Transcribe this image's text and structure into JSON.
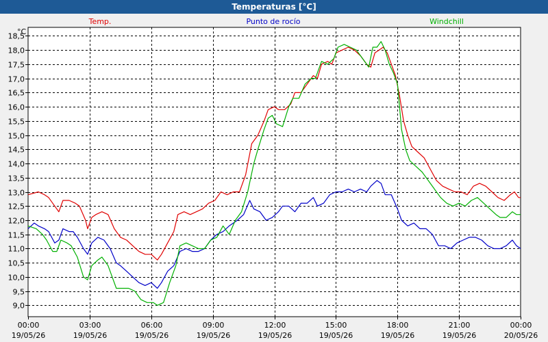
{
  "window": {
    "title": "Temperaturas [°C]"
  },
  "chart_data": {
    "type": "line",
    "title": "Temperaturas [°C]",
    "y_unit": "°C",
    "ylim": [
      8.6,
      18.8
    ],
    "yticks": [
      9.0,
      9.5,
      10.0,
      10.5,
      11.0,
      11.5,
      12.0,
      12.5,
      13.0,
      13.5,
      14.0,
      14.5,
      15.0,
      15.5,
      16.0,
      16.5,
      17.0,
      17.5,
      18.0,
      18.5
    ],
    "ytick_labels": [
      "9,0",
      "9,5",
      "10,0",
      "10,5",
      "11,0",
      "11,5",
      "12,0",
      "12,5",
      "13,0",
      "13,5",
      "14,0",
      "14,5",
      "15,0",
      "15,5",
      "16,0",
      "16,5",
      "17,0",
      "17,5",
      "18,0",
      "18,5"
    ],
    "xlim": [
      0,
      24
    ],
    "xticks": [
      0,
      3,
      6,
      9,
      12,
      15,
      18,
      21,
      24
    ],
    "xtick_labels": [
      [
        "00:00",
        "19/05/26"
      ],
      [
        "03:00",
        "19/05/26"
      ],
      [
        "06:00",
        "19/05/26"
      ],
      [
        "09:00",
        "19/05/26"
      ],
      [
        "12:00",
        "19/05/26"
      ],
      [
        "15:00",
        "19/05/26"
      ],
      [
        "18:00",
        "19/05/26"
      ],
      [
        "21:00",
        "19/05/26"
      ],
      [
        "00:00",
        "20/05/26"
      ]
    ],
    "grid": true,
    "legend_position": "top",
    "series": [
      {
        "name": "Temp.",
        "color": "#e00000",
        "points": [
          [
            0,
            12.9
          ],
          [
            0.5,
            13.0
          ],
          [
            0.8,
            12.9
          ],
          [
            1.0,
            12.8
          ],
          [
            1.3,
            12.5
          ],
          [
            1.5,
            12.3
          ],
          [
            1.7,
            12.7
          ],
          [
            2.0,
            12.7
          ],
          [
            2.3,
            12.6
          ],
          [
            2.5,
            12.5
          ],
          [
            2.8,
            12.0
          ],
          [
            2.9,
            11.7
          ],
          [
            3.1,
            12.1
          ],
          [
            3.3,
            12.2
          ],
          [
            3.6,
            12.3
          ],
          [
            3.9,
            12.2
          ],
          [
            4.2,
            11.7
          ],
          [
            4.5,
            11.4
          ],
          [
            4.8,
            11.3
          ],
          [
            5.1,
            11.1
          ],
          [
            5.4,
            10.9
          ],
          [
            5.7,
            10.8
          ],
          [
            6.0,
            10.8
          ],
          [
            6.3,
            10.6
          ],
          [
            6.5,
            10.8
          ],
          [
            6.8,
            11.2
          ],
          [
            7.1,
            11.6
          ],
          [
            7.3,
            12.2
          ],
          [
            7.6,
            12.3
          ],
          [
            7.9,
            12.2
          ],
          [
            8.2,
            12.3
          ],
          [
            8.5,
            12.4
          ],
          [
            8.8,
            12.6
          ],
          [
            9.1,
            12.7
          ],
          [
            9.4,
            13.0
          ],
          [
            9.7,
            12.9
          ],
          [
            10.0,
            13.0
          ],
          [
            10.3,
            13.0
          ],
          [
            10.6,
            13.6
          ],
          [
            10.9,
            14.7
          ],
          [
            11.2,
            15.0
          ],
          [
            11.5,
            15.5
          ],
          [
            11.7,
            15.9
          ],
          [
            12.0,
            16.0
          ],
          [
            12.2,
            15.9
          ],
          [
            12.5,
            15.9
          ],
          [
            12.8,
            16.1
          ],
          [
            13.0,
            16.5
          ],
          [
            13.3,
            16.5
          ],
          [
            13.6,
            16.8
          ],
          [
            13.9,
            17.1
          ],
          [
            14.1,
            17.0
          ],
          [
            14.3,
            17.5
          ],
          [
            14.6,
            17.6
          ],
          [
            14.8,
            17.5
          ],
          [
            15.0,
            17.9
          ],
          [
            15.3,
            18.0
          ],
          [
            15.6,
            18.1
          ],
          [
            15.9,
            18.0
          ],
          [
            16.2,
            17.8
          ],
          [
            16.5,
            17.5
          ],
          [
            16.7,
            17.4
          ],
          [
            16.9,
            17.9
          ],
          [
            17.1,
            18.0
          ],
          [
            17.3,
            18.1
          ],
          [
            17.5,
            17.9
          ],
          [
            17.7,
            17.5
          ],
          [
            17.9,
            17.1
          ],
          [
            18.1,
            16.4
          ],
          [
            18.3,
            15.5
          ],
          [
            18.5,
            15.0
          ],
          [
            18.7,
            14.6
          ],
          [
            19.0,
            14.4
          ],
          [
            19.3,
            14.2
          ],
          [
            19.6,
            13.8
          ],
          [
            19.9,
            13.4
          ],
          [
            20.2,
            13.2
          ],
          [
            20.5,
            13.1
          ],
          [
            20.8,
            13.0
          ],
          [
            21.1,
            13.0
          ],
          [
            21.4,
            12.9
          ],
          [
            21.7,
            13.2
          ],
          [
            22.0,
            13.3
          ],
          [
            22.3,
            13.2
          ],
          [
            22.6,
            13.0
          ],
          [
            22.9,
            12.8
          ],
          [
            23.2,
            12.7
          ],
          [
            23.5,
            12.9
          ],
          [
            23.7,
            13.0
          ],
          [
            23.9,
            12.8
          ],
          [
            24.0,
            12.8
          ]
        ]
      },
      {
        "name": "Punto de rocío",
        "color": "#0000c8",
        "points": [
          [
            0,
            11.7
          ],
          [
            0.3,
            11.9
          ],
          [
            0.5,
            11.8
          ],
          [
            0.8,
            11.7
          ],
          [
            1.0,
            11.6
          ],
          [
            1.3,
            11.2
          ],
          [
            1.5,
            11.3
          ],
          [
            1.7,
            11.7
          ],
          [
            2.0,
            11.6
          ],
          [
            2.2,
            11.6
          ],
          [
            2.4,
            11.4
          ],
          [
            2.7,
            11.0
          ],
          [
            2.9,
            10.8
          ],
          [
            3.1,
            11.2
          ],
          [
            3.4,
            11.4
          ],
          [
            3.7,
            11.3
          ],
          [
            4.0,
            11.0
          ],
          [
            4.3,
            10.5
          ],
          [
            4.5,
            10.4
          ],
          [
            4.8,
            10.2
          ],
          [
            5.1,
            10.0
          ],
          [
            5.4,
            9.8
          ],
          [
            5.7,
            9.7
          ],
          [
            6.0,
            9.8
          ],
          [
            6.3,
            9.6
          ],
          [
            6.5,
            9.8
          ],
          [
            6.8,
            10.2
          ],
          [
            7.1,
            10.4
          ],
          [
            7.4,
            10.9
          ],
          [
            7.7,
            11.0
          ],
          [
            8.0,
            10.9
          ],
          [
            8.3,
            10.9
          ],
          [
            8.6,
            11.0
          ],
          [
            8.9,
            11.3
          ],
          [
            9.2,
            11.5
          ],
          [
            9.5,
            11.6
          ],
          [
            9.8,
            11.8
          ],
          [
            10.2,
            12.0
          ],
          [
            10.5,
            12.2
          ],
          [
            10.8,
            12.7
          ],
          [
            11.0,
            12.4
          ],
          [
            11.3,
            12.3
          ],
          [
            11.6,
            12.0
          ],
          [
            11.9,
            12.1
          ],
          [
            12.2,
            12.3
          ],
          [
            12.4,
            12.5
          ],
          [
            12.7,
            12.5
          ],
          [
            13.0,
            12.3
          ],
          [
            13.3,
            12.6
          ],
          [
            13.6,
            12.6
          ],
          [
            13.9,
            12.8
          ],
          [
            14.1,
            12.5
          ],
          [
            14.4,
            12.6
          ],
          [
            14.7,
            12.9
          ],
          [
            15.0,
            13.0
          ],
          [
            15.3,
            13.0
          ],
          [
            15.6,
            13.1
          ],
          [
            15.9,
            13.0
          ],
          [
            16.2,
            13.1
          ],
          [
            16.5,
            13.0
          ],
          [
            16.7,
            13.2
          ],
          [
            17.0,
            13.4
          ],
          [
            17.2,
            13.3
          ],
          [
            17.4,
            12.9
          ],
          [
            17.7,
            12.9
          ],
          [
            18.0,
            12.4
          ],
          [
            18.2,
            12.0
          ],
          [
            18.5,
            11.8
          ],
          [
            18.8,
            11.9
          ],
          [
            19.1,
            11.7
          ],
          [
            19.4,
            11.7
          ],
          [
            19.7,
            11.5
          ],
          [
            20.0,
            11.1
          ],
          [
            20.3,
            11.1
          ],
          [
            20.6,
            11.0
          ],
          [
            20.9,
            11.2
          ],
          [
            21.2,
            11.3
          ],
          [
            21.5,
            11.4
          ],
          [
            21.8,
            11.4
          ],
          [
            22.1,
            11.3
          ],
          [
            22.4,
            11.1
          ],
          [
            22.7,
            11.0
          ],
          [
            23.0,
            11.0
          ],
          [
            23.3,
            11.1
          ],
          [
            23.6,
            11.3
          ],
          [
            23.8,
            11.1
          ],
          [
            24.0,
            11.0
          ]
        ]
      },
      {
        "name": "Windchill",
        "color": "#00b000",
        "points": [
          [
            0,
            11.8
          ],
          [
            0.4,
            11.7
          ],
          [
            0.7,
            11.5
          ],
          [
            0.9,
            11.3
          ],
          [
            1.2,
            10.9
          ],
          [
            1.4,
            10.9
          ],
          [
            1.6,
            11.3
          ],
          [
            1.9,
            11.2
          ],
          [
            2.1,
            11.1
          ],
          [
            2.4,
            10.7
          ],
          [
            2.7,
            10.0
          ],
          [
            2.9,
            9.9
          ],
          [
            3.1,
            10.4
          ],
          [
            3.4,
            10.6
          ],
          [
            3.6,
            10.7
          ],
          [
            3.9,
            10.4
          ],
          [
            4.1,
            10.0
          ],
          [
            4.3,
            9.6
          ],
          [
            4.6,
            9.6
          ],
          [
            4.9,
            9.6
          ],
          [
            5.2,
            9.5
          ],
          [
            5.5,
            9.2
          ],
          [
            5.8,
            9.1
          ],
          [
            6.1,
            9.1
          ],
          [
            6.3,
            9.0
          ],
          [
            6.6,
            9.1
          ],
          [
            6.9,
            9.8
          ],
          [
            7.2,
            10.4
          ],
          [
            7.4,
            11.1
          ],
          [
            7.7,
            11.2
          ],
          [
            8.0,
            11.1
          ],
          [
            8.3,
            11.0
          ],
          [
            8.6,
            11.0
          ],
          [
            8.9,
            11.3
          ],
          [
            9.2,
            11.4
          ],
          [
            9.5,
            11.8
          ],
          [
            9.8,
            11.5
          ],
          [
            10.1,
            12.0
          ],
          [
            10.4,
            12.3
          ],
          [
            10.7,
            13.0
          ],
          [
            11.0,
            14.0
          ],
          [
            11.2,
            14.5
          ],
          [
            11.5,
            15.2
          ],
          [
            11.7,
            15.6
          ],
          [
            11.9,
            15.7
          ],
          [
            12.1,
            15.4
          ],
          [
            12.4,
            15.3
          ],
          [
            12.7,
            16.0
          ],
          [
            12.9,
            16.3
          ],
          [
            13.2,
            16.3
          ],
          [
            13.5,
            16.8
          ],
          [
            13.8,
            17.0
          ],
          [
            14.0,
            17.0
          ],
          [
            14.3,
            17.6
          ],
          [
            14.6,
            17.5
          ],
          [
            14.9,
            17.7
          ],
          [
            15.1,
            18.1
          ],
          [
            15.4,
            18.2
          ],
          [
            15.7,
            18.1
          ],
          [
            16.0,
            18.0
          ],
          [
            16.3,
            17.7
          ],
          [
            16.6,
            17.4
          ],
          [
            16.8,
            18.1
          ],
          [
            17.0,
            18.1
          ],
          [
            17.2,
            18.3
          ],
          [
            17.4,
            18.0
          ],
          [
            17.6,
            17.5
          ],
          [
            17.8,
            17.2
          ],
          [
            18.0,
            16.8
          ],
          [
            18.2,
            15.2
          ],
          [
            18.4,
            14.5
          ],
          [
            18.6,
            14.1
          ],
          [
            18.9,
            13.9
          ],
          [
            19.2,
            13.7
          ],
          [
            19.5,
            13.4
          ],
          [
            19.8,
            13.1
          ],
          [
            20.1,
            12.8
          ],
          [
            20.4,
            12.6
          ],
          [
            20.7,
            12.5
          ],
          [
            21.0,
            12.6
          ],
          [
            21.3,
            12.5
          ],
          [
            21.6,
            12.7
          ],
          [
            21.9,
            12.8
          ],
          [
            22.2,
            12.6
          ],
          [
            22.5,
            12.4
          ],
          [
            22.8,
            12.2
          ],
          [
            23.0,
            12.1
          ],
          [
            23.3,
            12.1
          ],
          [
            23.6,
            12.3
          ],
          [
            23.8,
            12.2
          ],
          [
            24.0,
            12.2
          ]
        ]
      }
    ]
  }
}
